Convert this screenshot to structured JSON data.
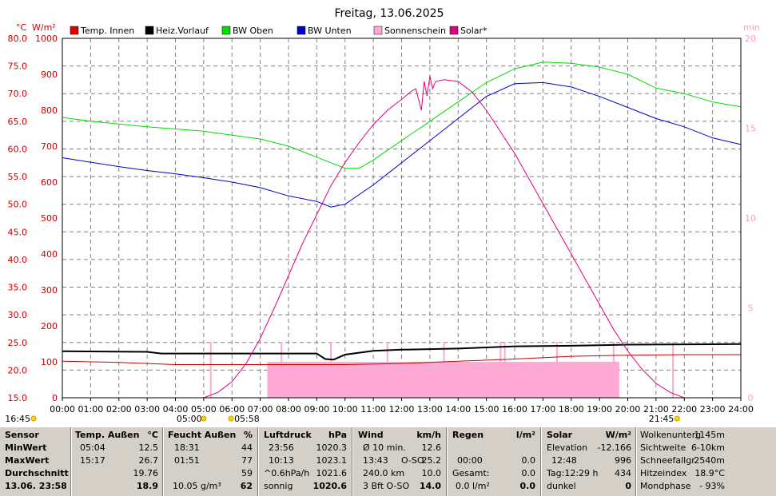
{
  "chart_data": {
    "type": "line",
    "title": "Freitag, 13.06.2025",
    "left_axis_units": [
      "°C",
      "W/m²"
    ],
    "right_axis_unit": "min",
    "temp_ticks": [
      "80.0",
      "75.0",
      "70.0",
      "65.0",
      "60.0",
      "55.0",
      "50.0",
      "45.0",
      "40.0",
      "35.0",
      "30.0",
      "25.0",
      "20.0",
      "15.0"
    ],
    "solar_ticks": [
      "1000",
      "900",
      "800",
      "700",
      "600",
      "500",
      "400",
      "300",
      "200",
      "100",
      "0"
    ],
    "min_ticks": [
      "20",
      "15",
      "10",
      "5",
      "0"
    ],
    "temp_range": [
      15,
      80
    ],
    "solar_range": [
      0,
      1000
    ],
    "min_range": [
      0,
      20
    ],
    "x_ticks": [
      "00:00",
      "01:00",
      "02:00",
      "03:00",
      "04:00",
      "05:00",
      "06:00",
      "07:00",
      "08:00",
      "09:00",
      "10:00",
      "11:00",
      "12:00",
      "13:00",
      "14:00",
      "15:00",
      "16:00",
      "17:00",
      "18:00",
      "19:00",
      "20:00",
      "21:00",
      "22:00",
      "23:00",
      "24:00"
    ],
    "grid": true,
    "legend_position": "top",
    "legend": [
      {
        "name": "Temp. Innen",
        "color": "#e00000"
      },
      {
        "name": "Heiz.Vorlauf",
        "color": "#000000"
      },
      {
        "name": "BW Oben",
        "color": "#00dd00"
      },
      {
        "name": "BW Unten",
        "color": "#0000cc"
      },
      {
        "name": "Sonnenschein",
        "color": "#ffaad4"
      },
      {
        "name": "Solar*",
        "color": "#e0007a"
      }
    ],
    "series": [
      {
        "key": "temp_innen",
        "axis": "temp",
        "color": "#c80000",
        "points": [
          [
            0,
            21.6
          ],
          [
            2,
            21.4
          ],
          [
            4,
            21.0
          ],
          [
            6,
            21.0
          ],
          [
            8,
            21.0
          ],
          [
            10,
            21.0
          ],
          [
            12,
            21.2
          ],
          [
            14,
            21.6
          ],
          [
            16,
            22.0
          ],
          [
            18,
            22.5
          ],
          [
            20,
            22.7
          ],
          [
            22,
            22.8
          ],
          [
            24,
            22.8
          ]
        ]
      },
      {
        "key": "heiz_vorlauf",
        "axis": "temp",
        "color": "#000000",
        "width": 2,
        "points": [
          [
            0,
            23.4
          ],
          [
            3,
            23.3
          ],
          [
            3.5,
            23.0
          ],
          [
            9.0,
            23.0
          ],
          [
            9.3,
            22.0
          ],
          [
            9.6,
            21.9
          ],
          [
            10,
            22.8
          ],
          [
            11,
            23.5
          ],
          [
            12,
            23.7
          ],
          [
            14,
            23.9
          ],
          [
            15,
            24.1
          ],
          [
            16,
            24.3
          ],
          [
            18,
            24.4
          ],
          [
            20,
            24.6
          ],
          [
            24,
            24.7
          ]
        ]
      },
      {
        "key": "bw_oben",
        "axis": "temp",
        "color": "#00dd00",
        "points": [
          [
            0,
            65.7
          ],
          [
            1,
            65.0
          ],
          [
            2,
            64.5
          ],
          [
            3,
            64.0
          ],
          [
            4,
            63.6
          ],
          [
            5,
            63.2
          ],
          [
            6,
            62.5
          ],
          [
            7,
            61.8
          ],
          [
            8,
            60.5
          ],
          [
            9,
            58.5
          ],
          [
            10,
            56.5
          ],
          [
            10.5,
            56.5
          ],
          [
            11,
            58.0
          ],
          [
            12,
            61.5
          ],
          [
            13,
            65.0
          ],
          [
            14,
            68.5
          ],
          [
            15,
            72.0
          ],
          [
            16,
            74.5
          ],
          [
            17,
            75.7
          ],
          [
            18,
            75.5
          ],
          [
            19,
            74.8
          ],
          [
            20,
            73.5
          ],
          [
            21,
            71.0
          ],
          [
            22,
            70.0
          ],
          [
            23,
            68.5
          ],
          [
            24,
            67.6
          ]
        ]
      },
      {
        "key": "bw_unten",
        "axis": "temp",
        "color": "#0000cc",
        "points": [
          [
            0,
            58.4
          ],
          [
            1,
            57.6
          ],
          [
            2,
            56.8
          ],
          [
            3,
            56.1
          ],
          [
            4,
            55.5
          ],
          [
            5,
            54.8
          ],
          [
            6,
            54.0
          ],
          [
            7,
            53.0
          ],
          [
            8,
            51.5
          ],
          [
            9,
            50.5
          ],
          [
            9.5,
            49.5
          ],
          [
            10,
            50.0
          ],
          [
            11,
            53.5
          ],
          [
            12,
            57.5
          ],
          [
            13,
            61.5
          ],
          [
            14,
            65.5
          ],
          [
            15,
            69.5
          ],
          [
            16,
            71.8
          ],
          [
            17,
            72.0
          ],
          [
            18,
            71.2
          ],
          [
            19,
            69.5
          ],
          [
            20,
            67.5
          ],
          [
            21,
            65.5
          ],
          [
            22,
            64.0
          ],
          [
            23,
            62.0
          ],
          [
            24,
            60.8
          ]
        ]
      },
      {
        "key": "solar",
        "axis": "solar",
        "color": "#e0007a",
        "points": [
          [
            5.0,
            0
          ],
          [
            5.5,
            15
          ],
          [
            6.0,
            45
          ],
          [
            6.5,
            95
          ],
          [
            7.0,
            165
          ],
          [
            7.5,
            250
          ],
          [
            8.0,
            340
          ],
          [
            8.5,
            430
          ],
          [
            9.0,
            510
          ],
          [
            9.5,
            590
          ],
          [
            10.0,
            655
          ],
          [
            10.5,
            710
          ],
          [
            11.0,
            760
          ],
          [
            11.5,
            800
          ],
          [
            12.0,
            830
          ],
          [
            12.3,
            850
          ],
          [
            12.5,
            860
          ],
          [
            12.7,
            800
          ],
          [
            12.8,
            880
          ],
          [
            12.9,
            840
          ],
          [
            13.0,
            895
          ],
          [
            13.1,
            860
          ],
          [
            13.2,
            880
          ],
          [
            13.5,
            885
          ],
          [
            14.0,
            880
          ],
          [
            14.5,
            850
          ],
          [
            15.0,
            800
          ],
          [
            15.5,
            740
          ],
          [
            16.0,
            680
          ],
          [
            16.5,
            610
          ],
          [
            17.0,
            540
          ],
          [
            17.5,
            470
          ],
          [
            18.0,
            400
          ],
          [
            18.5,
            330
          ],
          [
            19.0,
            260
          ],
          [
            19.5,
            190
          ],
          [
            20.0,
            130
          ],
          [
            20.5,
            80
          ],
          [
            21.0,
            40
          ],
          [
            21.5,
            15
          ],
          [
            22.0,
            0
          ]
        ]
      }
    ],
    "sunshine_bars": [
      {
        "from": 7.25,
        "to": 19.7,
        "value": 100
      }
    ],
    "sunshine_ticks": [
      5.25,
      7.75,
      9.5,
      11.5,
      13.5,
      15.5,
      15.65,
      17.5,
      19.5,
      21.6
    ],
    "day_markers": {
      "sunrise": "05:00",
      "sunset": "21:45",
      "moon_set": "05:58",
      "moon_rise": "16:45"
    }
  },
  "stats": {
    "sensor": {
      "header": "Sensor",
      "rows": [
        "MinWert",
        "MaxWert",
        "Durchschnitt",
        "13.06. 23:58"
      ]
    },
    "temp": {
      "header": "Temp. Außen",
      "unit": "°C",
      "min_time": "05:04",
      "min": "12.5",
      "max_time": "15:17",
      "max": "26.7",
      "avg": "19.76",
      "current": "18.9"
    },
    "humidity": {
      "header": "Feucht Außen",
      "unit": "%",
      "min_time": "18:31",
      "min": "44",
      "max_time": "01:51",
      "max": "77",
      "avg": "59",
      "abs": "10.05 g/m³",
      "current": "62"
    },
    "pressure": {
      "header": "Luftdruck",
      "unit": "hPa",
      "min_time": "23:56",
      "min": "1020.3",
      "max_time": "10:13",
      "max": "1023.1",
      "trend_label": "^0.6hPa/h",
      "trend": "1021.6",
      "weather": "sonnig",
      "current": "1020.6"
    },
    "wind": {
      "header": "Wind",
      "unit": "km/h",
      "avg_label": "Ø 10 min.",
      "avg": "12.6",
      "max_time": "13:43",
      "max_dir": "O-SO",
      "max": "25.2",
      "run_label": "240.0 km",
      "run": "10.0",
      "current_label": "3 Bft O-SO",
      "current": "14.0"
    },
    "rain": {
      "header": "Regen",
      "unit": "l/m²",
      "time": "00:00",
      "time_val": "0.0",
      "total_label": "Gesamt:",
      "total": "0.0",
      "current_label": "0.0 l/m²",
      "current": "0.0"
    },
    "solar": {
      "header": "Solar",
      "unit": "W/m²",
      "elev_label": "Elevation",
      "elev": "-12.166",
      "max_time": "12:48",
      "max": "996",
      "day_label": "Tag:12:29 h",
      "day": "434",
      "state_label": "dunkel",
      "current": "0"
    },
    "misc": {
      "cloud_label": "Wolkenunterg",
      "cloud": "1145m",
      "vis_label": "Sichtweite",
      "vis": "6-10km",
      "snow_label": "Schneefallgr",
      "snow": "2540m",
      "heat_label": "Hitzeindex",
      "heat": "18.9°C",
      "moon_label": "Mondphase",
      "moon": "- 93%"
    }
  }
}
